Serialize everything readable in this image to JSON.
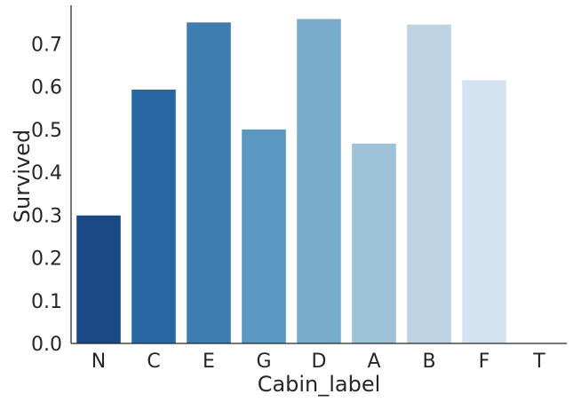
{
  "chart_data": {
    "type": "bar",
    "categories": [
      "N",
      "C",
      "E",
      "G",
      "D",
      "A",
      "B",
      "F",
      "T"
    ],
    "values": [
      0.299,
      0.593,
      0.75,
      0.5,
      0.758,
      0.467,
      0.745,
      0.615,
      0.0
    ],
    "colors": [
      "#1a4a86",
      "#2866a4",
      "#3f7db0",
      "#5a98c2",
      "#78abcc",
      "#9dc2d7",
      "#bdd3e4",
      "#d4e3f1",
      "#eef4fa"
    ],
    "title": "",
    "xlabel": "Cabin_label",
    "ylabel": "Survived",
    "ylim": [
      0,
      0.79
    ],
    "yticks": [
      0.0,
      0.1,
      0.2,
      0.3,
      0.4,
      0.5,
      0.6,
      0.7
    ],
    "ytick_labels": [
      "0.0",
      "0.1",
      "0.2",
      "0.3",
      "0.4",
      "0.5",
      "0.6",
      "0.7"
    ],
    "grid": false,
    "legend": "none"
  }
}
